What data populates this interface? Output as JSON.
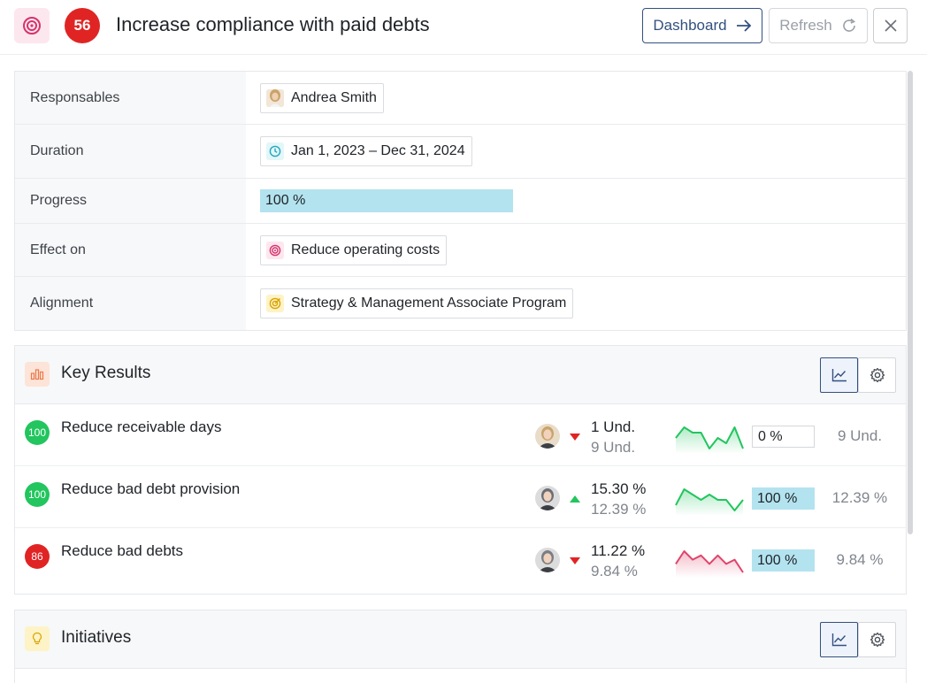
{
  "header": {
    "title": "Increase compliance with paid debts",
    "score": "56",
    "dashboard_label": "Dashboard",
    "refresh_label": "Refresh"
  },
  "properties": {
    "responsables_label": "Responsables",
    "responsable_name": "Andrea Smith",
    "duration_label": "Duration",
    "duration_value": "Jan 1, 2023 – Dec 31, 2024",
    "progress_label": "Progress",
    "progress_value": "100 %",
    "progress_fraction": 1.0,
    "effect_label": "Effect on",
    "effect_value": "Reduce operating costs",
    "alignment_label": "Alignment",
    "alignment_value": "Strategy & Management Associate Program"
  },
  "key_results": {
    "title": "Key Results",
    "items": [
      {
        "score": "100",
        "score_color": "#22c55e",
        "name": "Reduce receivable days",
        "trend": "down",
        "trend_color": "#e02424",
        "current": "1 Und.",
        "target": "9 Und.",
        "spark_color": "#22c55e",
        "spark_values": [
          4,
          6,
          5,
          5,
          2,
          4,
          3,
          6,
          2
        ],
        "percent": "0 %",
        "percent_fraction": 0.0,
        "goal": "9 Und."
      },
      {
        "score": "100",
        "score_color": "#22c55e",
        "name": "Reduce bad debt provision",
        "trend": "up",
        "trend_color": "#22c55e",
        "current": "15.30 %",
        "target": "12.39 %",
        "spark_color": "#22c55e",
        "spark_values": [
          3,
          6,
          5,
          4,
          5,
          4,
          4,
          2,
          4
        ],
        "percent": "100 %",
        "percent_fraction": 1.0,
        "goal": "12.39 %"
      },
      {
        "score": "86",
        "score_color": "#e02424",
        "name": "Reduce bad debts",
        "trend": "down",
        "trend_color": "#e02424",
        "current": "11.22 %",
        "target": "9.84 %",
        "spark_color": "#e0446a",
        "spark_values": [
          3,
          6,
          4,
          5,
          3,
          5,
          3,
          4,
          1
        ],
        "percent": "100 %",
        "percent_fraction": 1.0,
        "goal": "9.84 %"
      }
    ]
  },
  "initiatives": {
    "title": "Initiatives"
  },
  "colors": {
    "accent": "#33507f",
    "progress_fill": "#b3e3ef",
    "score_badge": "#e02424"
  }
}
